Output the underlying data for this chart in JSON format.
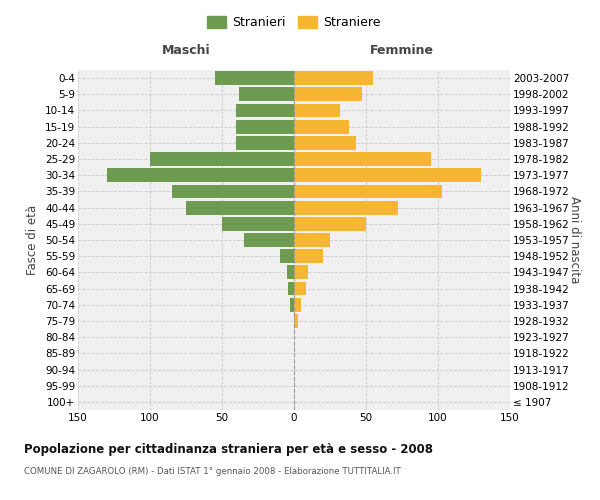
{
  "age_groups": [
    "100+",
    "95-99",
    "90-94",
    "85-89",
    "80-84",
    "75-79",
    "70-74",
    "65-69",
    "60-64",
    "55-59",
    "50-54",
    "45-49",
    "40-44",
    "35-39",
    "30-34",
    "25-29",
    "20-24",
    "15-19",
    "10-14",
    "5-9",
    "0-4"
  ],
  "birth_years": [
    "≤ 1907",
    "1908-1912",
    "1913-1917",
    "1918-1922",
    "1923-1927",
    "1928-1932",
    "1933-1937",
    "1938-1942",
    "1943-1947",
    "1948-1952",
    "1953-1957",
    "1958-1962",
    "1963-1967",
    "1968-1972",
    "1973-1977",
    "1978-1982",
    "1983-1987",
    "1988-1992",
    "1993-1997",
    "1998-2002",
    "2003-2007"
  ],
  "males": [
    0,
    0,
    0,
    0,
    0,
    0,
    3,
    4,
    5,
    10,
    35,
    50,
    75,
    85,
    130,
    100,
    40,
    40,
    40,
    38,
    55
  ],
  "females": [
    0,
    0,
    0,
    0,
    0,
    3,
    5,
    8,
    10,
    20,
    25,
    50,
    72,
    103,
    130,
    95,
    43,
    38,
    32,
    47,
    55
  ],
  "male_color": "#6d9b52",
  "female_color": "#f5b731",
  "background_color": "#f0f0f0",
  "grid_color": "#cccccc",
  "title": "Popolazione per cittadinanza straniera per età e sesso - 2008",
  "subtitle": "COMUNE DI ZAGAROLO (RM) - Dati ISTAT 1° gennaio 2008 - Elaborazione TUTTITALIA.IT",
  "xlabel_left": "Maschi",
  "xlabel_right": "Femmine",
  "ylabel_left": "Fasce di età",
  "ylabel_right": "Anni di nascita",
  "legend_male": "Stranieri",
  "legend_female": "Straniere",
  "xlim": 150
}
